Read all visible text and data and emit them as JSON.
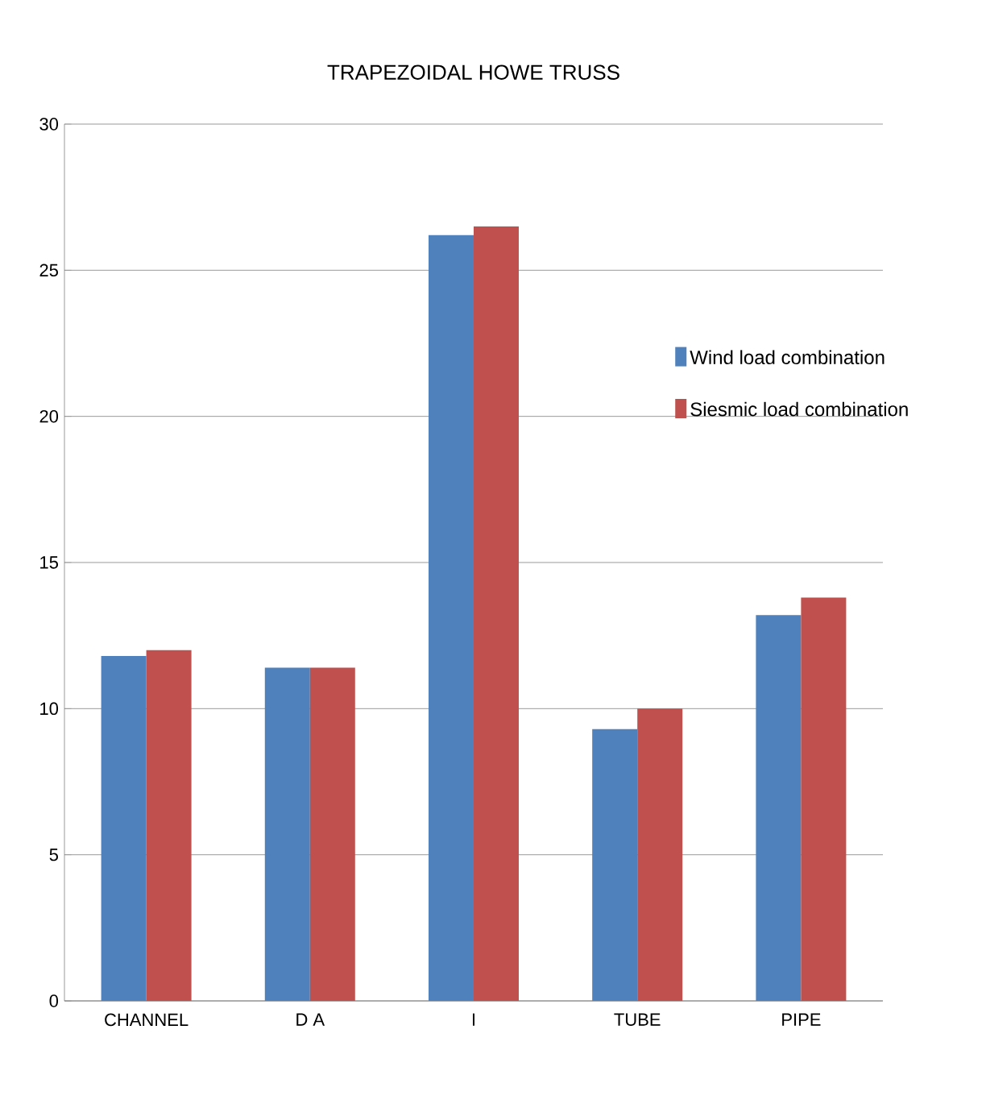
{
  "chart_data": {
    "type": "bar",
    "title": "TRAPEZOIDAL HOWE TRUSS",
    "categories": [
      "CHANNEL",
      "D A",
      "I",
      "TUBE",
      "PIPE"
    ],
    "series": [
      {
        "name": "Wind load combination",
        "color": "#4f81bd",
        "values": [
          11.8,
          11.4,
          26.2,
          9.3,
          13.2
        ]
      },
      {
        "name": "Siesmic load combination",
        "color": "#c0504d",
        "values": [
          12.0,
          11.4,
          26.5,
          10.0,
          13.8
        ]
      }
    ],
    "ylim": [
      0,
      30
    ],
    "yticks": [
      0,
      5,
      10,
      15,
      20,
      25,
      30
    ],
    "grid": "y",
    "legend": "right"
  }
}
